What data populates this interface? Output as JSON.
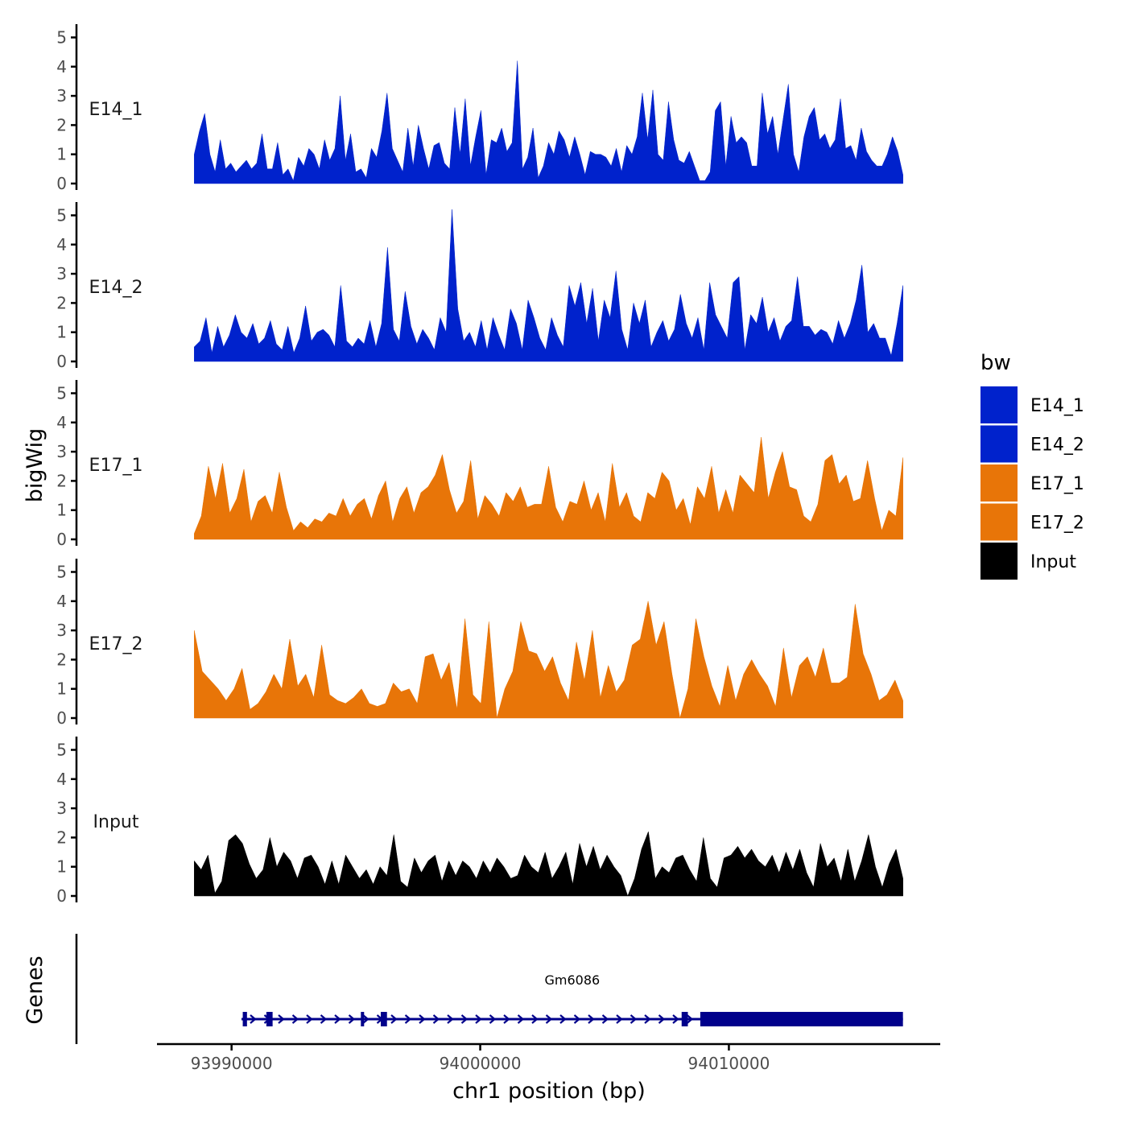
{
  "chart_data": {
    "type": "area",
    "title": "",
    "xlabel": "chr1 position (bp)",
    "ylabel": "bigWig",
    "genes_label": "Genes",
    "chromosome": "chr1",
    "x_range": [
      93987000,
      94018500
    ],
    "x_ticks": [
      93990000,
      94000000,
      94010000
    ],
    "x_tick_labels": [
      "93990000",
      "94000000",
      "94010000"
    ],
    "y_range": [
      0,
      5.4
    ],
    "y_ticks": [
      0,
      1,
      2,
      3,
      4,
      5
    ],
    "y_tick_labels": [
      "0",
      "1",
      "2",
      "3",
      "4",
      "5"
    ],
    "legend": {
      "title": "bw",
      "placement": "right",
      "entries": [
        {
          "label": "E14_1",
          "color": "#0022CC"
        },
        {
          "label": "E14_2",
          "color": "#0022CC"
        },
        {
          "label": "E17_1",
          "color": "#E87508"
        },
        {
          "label": "E17_2",
          "color": "#E87508"
        },
        {
          "label": "Input",
          "color": "#000000"
        }
      ]
    },
    "series": [
      {
        "name": "E14_1",
        "color": "#0022CC",
        "x_start": 93988500,
        "x_end": 94017000,
        "values": [
          1.0,
          1.8,
          2.4,
          1.0,
          0.4,
          1.5,
          0.5,
          0.7,
          0.4,
          0.6,
          0.8,
          0.5,
          0.7,
          1.7,
          0.5,
          0.5,
          1.4,
          0.3,
          0.5,
          0.1,
          0.9,
          0.6,
          1.2,
          1.0,
          0.5,
          1.5,
          0.8,
          1.2,
          3.0,
          0.8,
          1.7,
          0.4,
          0.5,
          0.2,
          1.2,
          0.9,
          1.8,
          3.1,
          1.2,
          0.8,
          0.4,
          1.9,
          0.6,
          2.0,
          1.2,
          0.5,
          1.3,
          1.4,
          0.7,
          0.5,
          2.6,
          1.0,
          2.9,
          0.6,
          1.6,
          2.5,
          0.3,
          1.5,
          1.4,
          1.9,
          1.1,
          1.4,
          4.2,
          0.5,
          0.9,
          1.9,
          0.2,
          0.6,
          1.4,
          1.0,
          1.8,
          1.5,
          0.9,
          1.6,
          1.0,
          0.3,
          1.1,
          1.0,
          1.0,
          0.9,
          0.6,
          1.2,
          0.4,
          1.3,
          1.0,
          1.6,
          3.1,
          1.5,
          3.2,
          1.0,
          0.8,
          2.8,
          1.5,
          0.8,
          0.7,
          1.1,
          0.6,
          0.1,
          0.1,
          0.4,
          2.5,
          2.8,
          0.6,
          2.3,
          1.4,
          1.6,
          1.4,
          0.6,
          0.6,
          3.1,
          1.7,
          2.3,
          1.0,
          2.2,
          3.4,
          1.0,
          0.4,
          1.6,
          2.3,
          2.6,
          1.5,
          1.7,
          1.2,
          1.5,
          2.9,
          1.2,
          1.3,
          0.8,
          1.9,
          1.1,
          0.8,
          0.6,
          0.6,
          1.0,
          1.6,
          1.1,
          0.3
        ]
      },
      {
        "name": "E14_2",
        "color": "#0022CC",
        "x_start": 93988500,
        "x_end": 94017000,
        "values": [
          0.5,
          0.7,
          1.5,
          0.3,
          1.2,
          0.5,
          0.9,
          1.6,
          1.0,
          0.8,
          1.3,
          0.6,
          0.8,
          1.4,
          0.6,
          0.4,
          1.2,
          0.3,
          0.8,
          1.9,
          0.7,
          1.0,
          1.1,
          0.9,
          0.5,
          2.6,
          0.7,
          0.5,
          0.8,
          0.6,
          1.4,
          0.5,
          1.3,
          3.9,
          1.1,
          0.7,
          2.4,
          1.2,
          0.6,
          1.1,
          0.8,
          0.4,
          1.5,
          1.0,
          5.2,
          1.8,
          0.7,
          1.0,
          0.5,
          1.4,
          0.4,
          1.5,
          0.9,
          0.4,
          1.8,
          1.3,
          0.4,
          2.1,
          1.5,
          0.8,
          0.4,
          1.5,
          0.9,
          0.5,
          2.6,
          1.9,
          2.7,
          1.3,
          2.5,
          0.7,
          2.1,
          1.5,
          3.1,
          1.1,
          0.4,
          2.0,
          1.3,
          2.1,
          0.5,
          1.0,
          1.4,
          0.7,
          1.1,
          2.3,
          1.3,
          0.8,
          1.5,
          0.4,
          2.7,
          1.6,
          1.2,
          0.8,
          2.7,
          2.9,
          0.4,
          1.6,
          1.3,
          2.2,
          1.0,
          1.5,
          0.7,
          1.2,
          1.4,
          2.9,
          1.2,
          1.2,
          0.9,
          1.1,
          1.0,
          0.6,
          1.4,
          0.8,
          1.3,
          2.1,
          3.3,
          1.0,
          1.3,
          0.8,
          0.8,
          0.2,
          1.3,
          2.6
        ]
      },
      {
        "name": "E17_1",
        "color": "#E87508",
        "x_start": 93988500,
        "x_end": 94017000,
        "values": [
          0.2,
          0.8,
          2.5,
          1.4,
          2.6,
          0.9,
          1.4,
          2.4,
          0.6,
          1.3,
          1.5,
          0.9,
          2.3,
          1.1,
          0.3,
          0.6,
          0.4,
          0.7,
          0.6,
          0.9,
          0.8,
          1.4,
          0.8,
          1.2,
          1.4,
          0.7,
          1.5,
          2.0,
          0.6,
          1.4,
          1.8,
          0.9,
          1.6,
          1.8,
          2.2,
          2.9,
          1.7,
          0.9,
          1.3,
          2.7,
          0.7,
          1.5,
          1.2,
          0.8,
          1.6,
          1.3,
          1.8,
          1.1,
          1.2,
          1.2,
          2.5,
          1.1,
          0.6,
          1.3,
          1.2,
          2.0,
          1.0,
          1.6,
          0.6,
          2.6,
          1.1,
          1.6,
          0.8,
          0.6,
          1.6,
          1.4,
          2.3,
          2.0,
          1.0,
          1.4,
          0.5,
          1.8,
          1.4,
          2.5,
          0.9,
          1.7,
          0.9,
          2.2,
          1.9,
          1.6,
          3.5,
          1.4,
          2.3,
          3.0,
          1.8,
          1.7,
          0.8,
          0.6,
          1.2,
          2.7,
          2.9,
          1.9,
          2.2,
          1.3,
          1.4,
          2.7,
          1.4,
          0.3,
          1.0,
          0.8,
          2.8
        ]
      },
      {
        "name": "E17_2",
        "color": "#E87508",
        "x_start": 93988500,
        "x_end": 94017000,
        "values": [
          3.0,
          1.6,
          1.3,
          1.0,
          0.6,
          1.0,
          1.7,
          0.3,
          0.5,
          0.9,
          1.5,
          1.0,
          2.7,
          1.1,
          1.5,
          0.7,
          2.5,
          0.8,
          0.6,
          0.5,
          0.7,
          1.0,
          0.5,
          0.4,
          0.5,
          1.2,
          0.9,
          1.0,
          0.5,
          2.1,
          2.2,
          1.3,
          1.9,
          0.3,
          3.4,
          0.8,
          0.5,
          3.3,
          0.0,
          1.0,
          1.6,
          3.3,
          2.3,
          2.2,
          1.6,
          2.1,
          1.2,
          0.6,
          2.6,
          1.3,
          3.0,
          0.7,
          1.8,
          0.9,
          1.3,
          2.5,
          2.7,
          4.0,
          2.5,
          3.3,
          1.5,
          0.0,
          1.0,
          3.4,
          2.1,
          1.1,
          0.4,
          1.8,
          0.6,
          1.5,
          2.0,
          1.5,
          1.1,
          0.4,
          2.4,
          0.7,
          1.8,
          2.1,
          1.4,
          2.4,
          1.2,
          1.2,
          1.4,
          3.9,
          2.2,
          1.5,
          0.6,
          0.8,
          1.3,
          0.6
        ]
      },
      {
        "name": "Input",
        "color": "#000000",
        "x_start": 93988500,
        "x_end": 94017000,
        "values": [
          1.2,
          0.9,
          1.4,
          0.1,
          0.5,
          1.9,
          2.1,
          1.8,
          1.1,
          0.6,
          0.9,
          2.0,
          1.0,
          1.5,
          1.2,
          0.6,
          1.3,
          1.4,
          1.0,
          0.4,
          1.2,
          0.4,
          1.4,
          1.0,
          0.6,
          0.9,
          0.4,
          1.0,
          0.7,
          2.1,
          0.5,
          0.3,
          1.3,
          0.8,
          1.2,
          1.4,
          0.5,
          1.2,
          0.7,
          1.2,
          1.0,
          0.6,
          1.2,
          0.8,
          1.3,
          1.0,
          0.6,
          0.7,
          1.4,
          1.0,
          0.8,
          1.5,
          0.6,
          1.0,
          1.5,
          0.4,
          1.8,
          1.0,
          1.7,
          0.9,
          1.4,
          1.0,
          0.7,
          0.0,
          0.6,
          1.6,
          2.2,
          0.6,
          1.0,
          0.8,
          1.3,
          1.4,
          0.9,
          0.5,
          2.0,
          0.6,
          0.3,
          1.3,
          1.4,
          1.7,
          1.3,
          1.6,
          1.2,
          1.0,
          1.4,
          0.8,
          1.5,
          0.9,
          1.6,
          0.8,
          0.3,
          1.8,
          1.0,
          1.3,
          0.5,
          1.6,
          0.5,
          1.2,
          2.1,
          1.0,
          0.3,
          1.1,
          1.6,
          0.6
        ]
      }
    ],
    "genes": [
      {
        "name": "Gm6086",
        "start": 93990400,
        "end": 94017000,
        "strand": "+",
        "exons": [
          [
            93990450,
            93990620
          ],
          [
            93991400,
            93991650
          ],
          [
            93995200,
            93995320
          ],
          [
            93996000,
            93996250
          ],
          [
            94008100,
            94008350
          ],
          [
            94008850,
            94017000
          ]
        ]
      }
    ]
  }
}
